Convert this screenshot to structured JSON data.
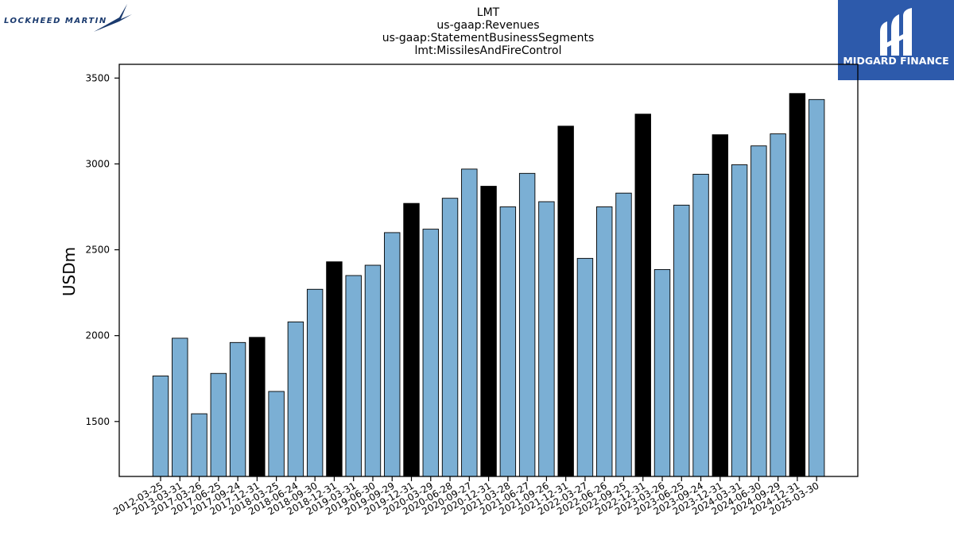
{
  "logos": {
    "left_text": "LOCKHEED MARTIN",
    "right_text": "MIDGARD FINANCE",
    "right_bg": "#2d5aab"
  },
  "colors": {
    "quarter_bar": "#7bafd4",
    "annual_bar": "#000000",
    "bar_edge": "#000000"
  },
  "chart_data": {
    "type": "bar",
    "title_lines": [
      "LMT",
      "us-gaap:Revenues",
      "us-gaap:StatementBusinessSegments",
      "lmt:MissilesAndFireControl"
    ],
    "xlabel": "",
    "ylabel": "USDm",
    "ylim": [
      1180,
      3580
    ],
    "yticks": [
      1500,
      2000,
      2500,
      3000,
      3500
    ],
    "grid": false,
    "categories": [
      "2012-03-25",
      "2013-03-31",
      "2017-03-26",
      "2017-06-25",
      "2017-09-24",
      "2017-12-31",
      "2018-03-25",
      "2018-06-24",
      "2018-09-30",
      "2018-12-31",
      "2019-03-31",
      "2019-06-30",
      "2019-09-29",
      "2019-12-31",
      "2020-03-29",
      "2020-06-28",
      "2020-09-27",
      "2020-12-31",
      "2021-03-28",
      "2021-06-27",
      "2021-09-26",
      "2021-12-31",
      "2022-03-27",
      "2022-06-26",
      "2022-09-25",
      "2022-12-31",
      "2023-03-26",
      "2023-06-25",
      "2023-09-24",
      "2023-12-31",
      "2024-03-31",
      "2024-06-30",
      "2024-09-29",
      "2024-12-31",
      "2025-03-30"
    ],
    "values": [
      1765,
      1985,
      1545,
      1780,
      1960,
      1990,
      1675,
      2080,
      2270,
      2430,
      2350,
      2410,
      2600,
      2770,
      2620,
      2800,
      2970,
      2870,
      2750,
      2945,
      2780,
      3220,
      2450,
      2750,
      2830,
      3290,
      2385,
      2760,
      2940,
      3170,
      2995,
      3105,
      3175,
      3410,
      3375
    ],
    "annual": [
      false,
      false,
      false,
      false,
      false,
      true,
      false,
      false,
      false,
      true,
      false,
      false,
      false,
      true,
      false,
      false,
      false,
      true,
      false,
      false,
      false,
      true,
      false,
      false,
      false,
      true,
      false,
      false,
      false,
      true,
      false,
      false,
      false,
      true,
      false
    ]
  }
}
